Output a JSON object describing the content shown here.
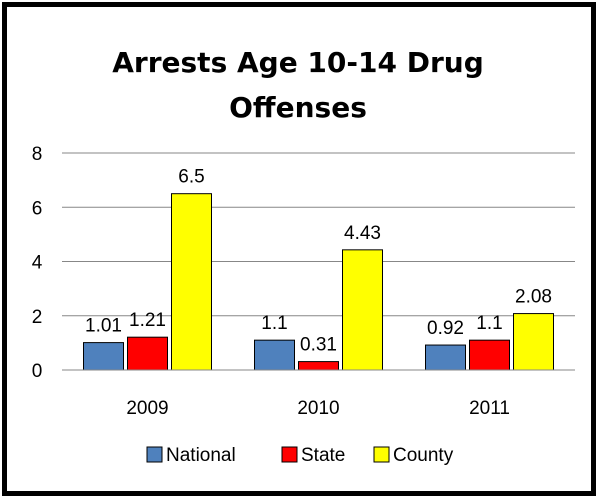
{
  "chart_data": {
    "type": "bar",
    "title_lines": [
      "Arrests Age 10-14 Drug",
      "Offenses"
    ],
    "categories": [
      "2009",
      "2010",
      "2011"
    ],
    "series": [
      {
        "name": "National",
        "color": "#4F81BD",
        "values": [
          1.01,
          1.1,
          0.92
        ],
        "labels": [
          "1.01",
          "1.1",
          "0.92"
        ]
      },
      {
        "name": "State",
        "color": "#FF0000",
        "values": [
          1.21,
          0.31,
          1.1
        ],
        "labels": [
          "1.21",
          "0.31",
          "1.1"
        ]
      },
      {
        "name": "County",
        "color": "#FFFF00",
        "values": [
          6.5,
          4.43,
          2.08
        ],
        "labels": [
          "6.5",
          "4.43",
          "2.08"
        ]
      }
    ],
    "yticks": [
      0,
      2,
      4,
      6,
      8
    ],
    "ylim": [
      0,
      8
    ],
    "grid": true,
    "legend_position": "bottom"
  }
}
